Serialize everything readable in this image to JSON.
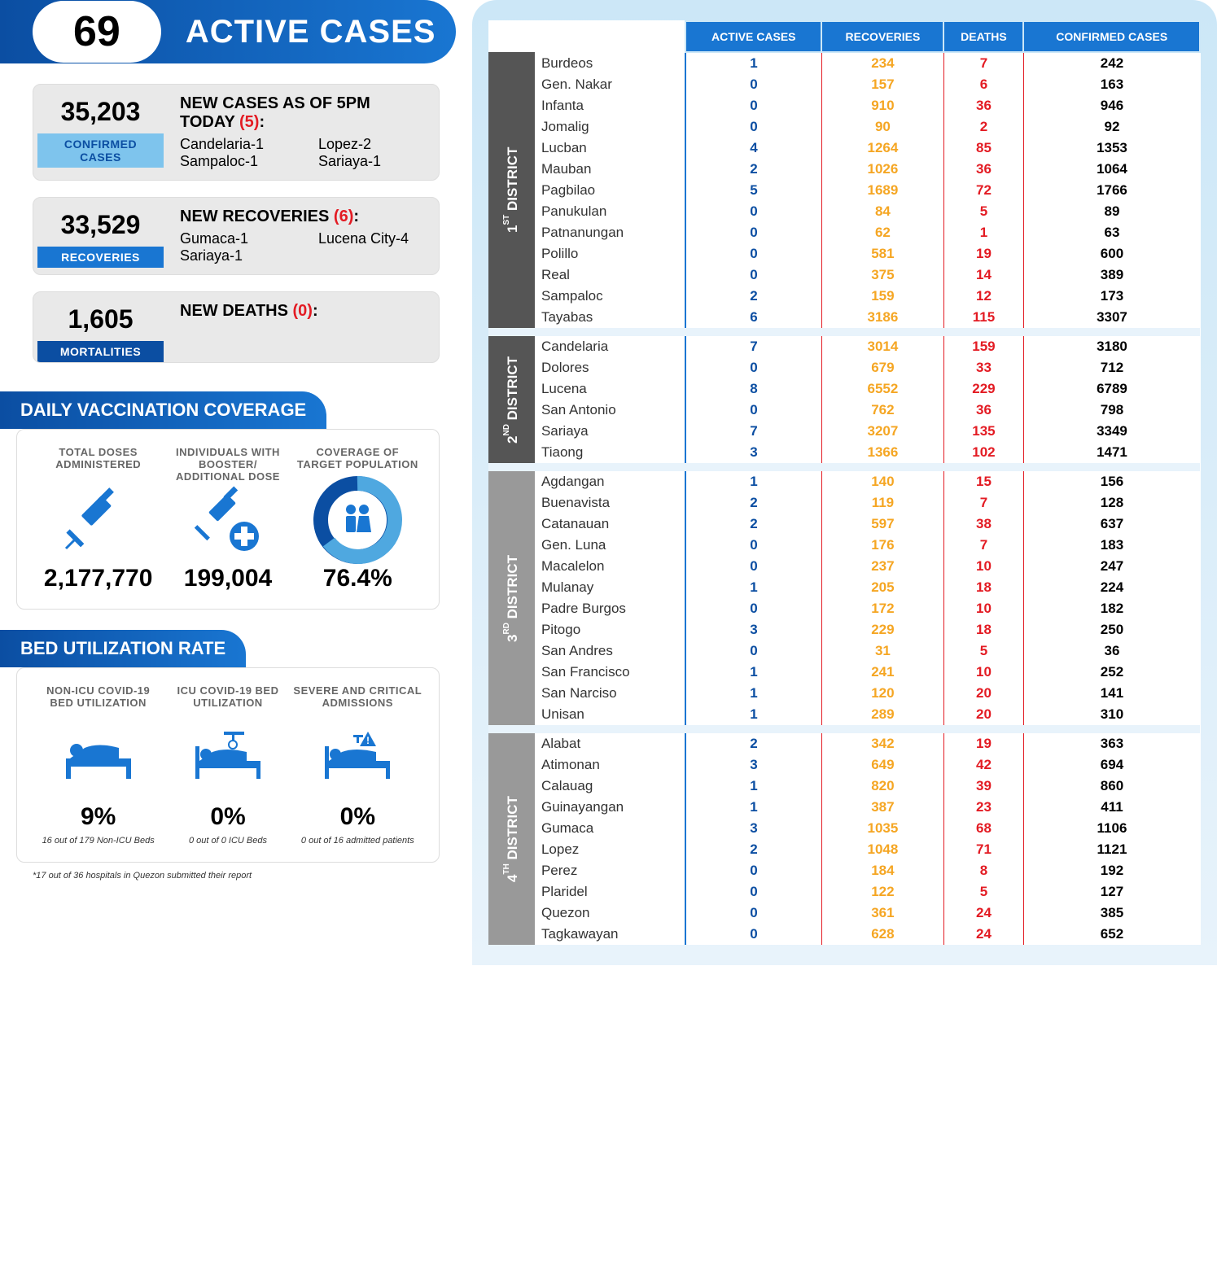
{
  "header": {
    "value": "69",
    "label": "ACTIVE CASES"
  },
  "stats": {
    "confirmed": {
      "value": "35,203",
      "badge": "CONFIRMED CASES",
      "title_prefix": "NEW CASES AS OF 5PM TODAY ",
      "title_count": "(5)",
      "title_suffix": ":",
      "items": [
        "Candelaria-1",
        "Lopez-2",
        "Sampaloc-1",
        "Sariaya-1"
      ]
    },
    "recoveries": {
      "value": "33,529",
      "badge": "RECOVERIES",
      "title_prefix": "NEW RECOVERIES ",
      "title_count": "(6)",
      "title_suffix": ":",
      "items": [
        "Gumaca-1",
        "Lucena City-4",
        "Sariaya-1"
      ]
    },
    "mortalities": {
      "value": "1,605",
      "badge": "MORTALITIES",
      "title_prefix": "NEW DEATHS ",
      "title_count": "(0)",
      "title_suffix": ":",
      "items": []
    }
  },
  "vaccination": {
    "section_title": "DAILY VACCINATION COVERAGE",
    "doses": {
      "label": "TOTAL DOSES ADMINISTERED",
      "value": "2,177,770"
    },
    "booster": {
      "label": "INDIVIDUALS WITH BOOSTER/ ADDITIONAL DOSE",
      "value": "199,004"
    },
    "coverage": {
      "label": "COVERAGE OF TARGET POPULATION",
      "value": "76.4%",
      "percent": 76.4
    }
  },
  "beds": {
    "section_title": "BED UTILIZATION RATE",
    "nonicu": {
      "label": "NON-ICU COVID-19 BED UTILIZATION",
      "value": "9%",
      "note": "16 out of 179 Non-ICU Beds"
    },
    "icu": {
      "label": "ICU COVID-19 BED UTILIZATION",
      "value": "0%",
      "note": "0 out of 0 ICU Beds"
    },
    "severe": {
      "label": "SEVERE AND CRITICAL ADMISSIONS",
      "value": "0%",
      "note": "0 out of 16 admitted patients"
    },
    "footnote": "*17 out of 36 hospitals in Quezon submitted their report"
  },
  "table": {
    "headers": [
      "ACTIVE CASES",
      "RECOVERIES",
      "DEATHS",
      "CONFIRMED CASES"
    ],
    "districts": [
      {
        "name": "1ST DISTRICT",
        "class": "d1",
        "rows": [
          {
            "m": "Burdeos",
            "a": "1",
            "r": "234",
            "d": "7",
            "c": "242"
          },
          {
            "m": "Gen. Nakar",
            "a": "0",
            "r": "157",
            "d": "6",
            "c": "163"
          },
          {
            "m": "Infanta",
            "a": "0",
            "r": "910",
            "d": "36",
            "c": "946"
          },
          {
            "m": "Jomalig",
            "a": "0",
            "r": "90",
            "d": "2",
            "c": "92"
          },
          {
            "m": "Lucban",
            "a": "4",
            "r": "1264",
            "d": "85",
            "c": "1353"
          },
          {
            "m": "Mauban",
            "a": "2",
            "r": "1026",
            "d": "36",
            "c": "1064"
          },
          {
            "m": "Pagbilao",
            "a": "5",
            "r": "1689",
            "d": "72",
            "c": "1766"
          },
          {
            "m": "Panukulan",
            "a": "0",
            "r": "84",
            "d": "5",
            "c": "89"
          },
          {
            "m": "Patnanungan",
            "a": "0",
            "r": "62",
            "d": "1",
            "c": "63"
          },
          {
            "m": "Polillo",
            "a": "0",
            "r": "581",
            "d": "19",
            "c": "600"
          },
          {
            "m": "Real",
            "a": "0",
            "r": "375",
            "d": "14",
            "c": "389"
          },
          {
            "m": "Sampaloc",
            "a": "2",
            "r": "159",
            "d": "12",
            "c": "173"
          },
          {
            "m": "Tayabas",
            "a": "6",
            "r": "3186",
            "d": "115",
            "c": "3307"
          }
        ]
      },
      {
        "name": "2ND DISTRICT",
        "class": "d2",
        "rows": [
          {
            "m": "Candelaria",
            "a": "7",
            "r": "3014",
            "d": "159",
            "c": "3180"
          },
          {
            "m": "Dolores",
            "a": "0",
            "r": "679",
            "d": "33",
            "c": "712"
          },
          {
            "m": "Lucena",
            "a": "8",
            "r": "6552",
            "d": "229",
            "c": "6789"
          },
          {
            "m": "San Antonio",
            "a": "0",
            "r": "762",
            "d": "36",
            "c": "798"
          },
          {
            "m": "Sariaya",
            "a": "7",
            "r": "3207",
            "d": "135",
            "c": "3349"
          },
          {
            "m": "Tiaong",
            "a": "3",
            "r": "1366",
            "d": "102",
            "c": "1471"
          }
        ]
      },
      {
        "name": "3RD DISTRICT",
        "class": "d3",
        "rows": [
          {
            "m": "Agdangan",
            "a": "1",
            "r": "140",
            "d": "15",
            "c": "156"
          },
          {
            "m": "Buenavista",
            "a": "2",
            "r": "119",
            "d": "7",
            "c": "128"
          },
          {
            "m": "Catanauan",
            "a": "2",
            "r": "597",
            "d": "38",
            "c": "637"
          },
          {
            "m": "Gen. Luna",
            "a": "0",
            "r": "176",
            "d": "7",
            "c": "183"
          },
          {
            "m": "Macalelon",
            "a": "0",
            "r": "237",
            "d": "10",
            "c": "247"
          },
          {
            "m": "Mulanay",
            "a": "1",
            "r": "205",
            "d": "18",
            "c": "224"
          },
          {
            "m": "Padre Burgos",
            "a": "0",
            "r": "172",
            "d": "10",
            "c": "182"
          },
          {
            "m": "Pitogo",
            "a": "3",
            "r": "229",
            "d": "18",
            "c": "250"
          },
          {
            "m": "San Andres",
            "a": "0",
            "r": "31",
            "d": "5",
            "c": "36"
          },
          {
            "m": "San Francisco",
            "a": "1",
            "r": "241",
            "d": "10",
            "c": "252"
          },
          {
            "m": "San Narciso",
            "a": "1",
            "r": "120",
            "d": "20",
            "c": "141"
          },
          {
            "m": "Unisan",
            "a": "1",
            "r": "289",
            "d": "20",
            "c": "310"
          }
        ]
      },
      {
        "name": "4TH DISTRICT",
        "class": "d4",
        "rows": [
          {
            "m": "Alabat",
            "a": "2",
            "r": "342",
            "d": "19",
            "c": "363"
          },
          {
            "m": "Atimonan",
            "a": "3",
            "r": "649",
            "d": "42",
            "c": "694"
          },
          {
            "m": "Calauag",
            "a": "1",
            "r": "820",
            "d": "39",
            "c": "860"
          },
          {
            "m": "Guinayangan",
            "a": "1",
            "r": "387",
            "d": "23",
            "c": "411"
          },
          {
            "m": "Gumaca",
            "a": "3",
            "r": "1035",
            "d": "68",
            "c": "1106"
          },
          {
            "m": "Lopez",
            "a": "2",
            "r": "1048",
            "d": "71",
            "c": "1121"
          },
          {
            "m": "Perez",
            "a": "0",
            "r": "184",
            "d": "8",
            "c": "192"
          },
          {
            "m": "Plaridel",
            "a": "0",
            "r": "122",
            "d": "5",
            "c": "127"
          },
          {
            "m": "Quezon",
            "a": "0",
            "r": "361",
            "d": "24",
            "c": "385"
          },
          {
            "m": "Tagkawayan",
            "a": "0",
            "r": "628",
            "d": "24",
            "c": "652"
          }
        ]
      }
    ]
  },
  "colors": {
    "blue": "#1976d2",
    "darkblue": "#0b4ea2",
    "red": "#e31b23",
    "orange": "#f5a623"
  }
}
